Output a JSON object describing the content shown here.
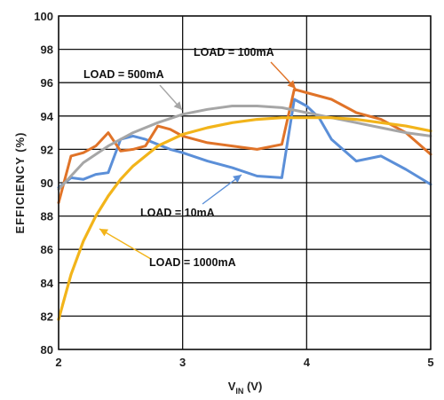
{
  "chart_data": {
    "type": "line",
    "xlabel_main": "V",
    "xlabel_sub": "IN",
    "xlabel_unit": " (V)",
    "ylabel": "EFFICIENCY (%)",
    "xlim": [
      2,
      5
    ],
    "ylim": [
      80,
      100
    ],
    "xticks": [
      2,
      3,
      4,
      5
    ],
    "yticks": [
      80,
      82,
      84,
      86,
      88,
      90,
      92,
      94,
      96,
      98,
      100
    ],
    "grid": true,
    "series": [
      {
        "name": "LOAD = 10mA",
        "color": "#5b8fd8",
        "x": [
          2.0,
          2.1,
          2.2,
          2.3,
          2.4,
          2.5,
          2.6,
          2.7,
          2.8,
          2.9,
          3.0,
          3.2,
          3.4,
          3.6,
          3.8,
          3.9,
          4.0,
          4.1,
          4.2,
          4.4,
          4.6,
          4.8,
          5.0
        ],
        "y": [
          89.7,
          90.3,
          90.2,
          90.5,
          90.6,
          92.6,
          92.8,
          92.6,
          92.3,
          92.0,
          91.8,
          91.3,
          90.9,
          90.4,
          90.3,
          95.0,
          94.6,
          93.9,
          92.6,
          91.3,
          91.6,
          90.8,
          89.9
        ]
      },
      {
        "name": "LOAD = 100mA",
        "color": "#e07328",
        "x": [
          2.0,
          2.1,
          2.2,
          2.3,
          2.4,
          2.5,
          2.6,
          2.7,
          2.8,
          2.9,
          3.0,
          3.2,
          3.4,
          3.6,
          3.8,
          3.9,
          4.0,
          4.2,
          4.4,
          4.6,
          4.8,
          5.0
        ],
        "y": [
          88.8,
          91.6,
          91.8,
          92.2,
          93.0,
          91.9,
          92.0,
          92.2,
          93.4,
          93.2,
          92.8,
          92.4,
          92.2,
          92.0,
          92.3,
          95.6,
          95.4,
          95.0,
          94.2,
          93.8,
          93.0,
          91.7
        ]
      },
      {
        "name": "LOAD = 500mA",
        "color": "#a6a6a6",
        "x": [
          2.0,
          2.2,
          2.4,
          2.6,
          2.8,
          3.0,
          3.2,
          3.4,
          3.6,
          3.8,
          4.0,
          4.2,
          4.4,
          4.6,
          4.8,
          5.0
        ],
        "y": [
          89.6,
          91.2,
          92.2,
          93.0,
          93.6,
          94.1,
          94.4,
          94.6,
          94.6,
          94.5,
          94.2,
          93.9,
          93.6,
          93.3,
          93.0,
          92.8
        ]
      },
      {
        "name": "LOAD = 1000mA",
        "color": "#f2b41a",
        "x": [
          2.0,
          2.1,
          2.2,
          2.3,
          2.4,
          2.5,
          2.6,
          2.8,
          3.0,
          3.2,
          3.4,
          3.6,
          3.8,
          4.0,
          4.2,
          4.4,
          4.6,
          4.8,
          5.0
        ],
        "y": [
          81.8,
          84.5,
          86.5,
          88.0,
          89.2,
          90.2,
          91.0,
          92.2,
          92.9,
          93.3,
          93.6,
          93.8,
          93.9,
          93.9,
          93.9,
          93.8,
          93.6,
          93.4,
          93.1
        ]
      }
    ]
  }
}
